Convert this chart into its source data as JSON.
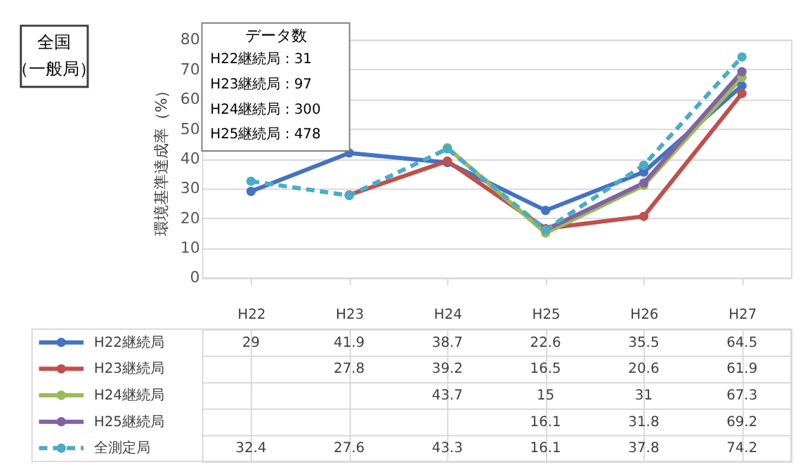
{
  "chart_data": {
    "type": "line",
    "title": "全国",
    "subtitle": "（一般局）",
    "ylabel": "環境基準達成率（%）",
    "categories": [
      "H22",
      "H23",
      "H24",
      "H25",
      "H26",
      "H27"
    ],
    "series": [
      {
        "name": "H22継続局",
        "color": "#4472c4",
        "values": [
          29,
          41.9,
          38.7,
          22.6,
          35.5,
          64.5
        ]
      },
      {
        "name": "H23継続局",
        "color": "#c0504d",
        "values": [
          null,
          27.8,
          39.2,
          16.5,
          20.6,
          61.9
        ]
      },
      {
        "name": "H24継続局",
        "color": "#9bbb59",
        "values": [
          null,
          null,
          43.7,
          15,
          31,
          67.3
        ]
      },
      {
        "name": "H25継続局",
        "color": "#8064a2",
        "values": [
          null,
          null,
          null,
          16.1,
          31.8,
          69.2
        ]
      },
      {
        "name": "全測定局",
        "color": "#4bacc6",
        "line_style": "dashed",
        "values": [
          32.4,
          27.6,
          43.3,
          16.1,
          37.8,
          74.2
        ]
      }
    ],
    "annotations": [
      "データ数",
      "H22継続局 : 31",
      "H23継続局 : 97",
      "H24継続局 : 300",
      "H25継続局 : 478"
    ],
    "ylim": [
      0,
      80
    ],
    "yticks": [
      0,
      10,
      20,
      30,
      40,
      50,
      60,
      70,
      80
    ],
    "grid": "y",
    "legend": "bottom left",
    "marker": "circle",
    "line_style": "solid",
    "data_labels": true
  }
}
